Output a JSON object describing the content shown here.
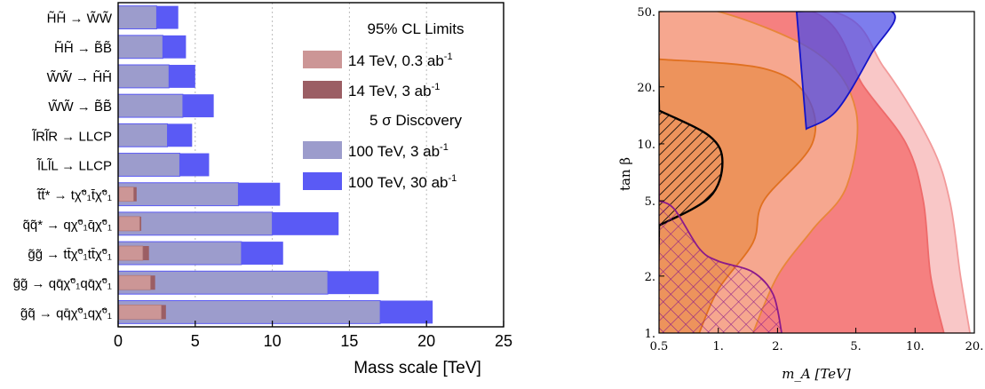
{
  "colors": {
    "lhc_low": "#cc9696",
    "lhc_high": "#9b5e64",
    "fcc_low": "#9c9ccc",
    "fcc_high": "#5a5af5",
    "bar_edge": "#5a5af5",
    "grid": "#bbbbbb",
    "hatch_black": "#000000",
    "hatch_purple": "#8b1a8b",
    "blue_fill": "#4b4be6",
    "orange_fill": "#e8863a",
    "light_orange_fill": "#f6c79a",
    "pink_fill": "#f47c7c",
    "light_pink_fill": "#f9c4c4",
    "purple_fill": "#6e5ab4"
  },
  "chart_data": [
    {
      "type": "bar",
      "orientation": "horizontal",
      "xlabel": "Mass scale [TeV]",
      "xlim": [
        0,
        25
      ],
      "xticks": [
        "0",
        "5",
        "10",
        "15",
        "20",
        "25"
      ],
      "grid": "vertical dotted at 5, 10, 15, 20",
      "legend_position": "top-right",
      "legend": {
        "group1_title": "95% CL Limits",
        "group2_title": "5 σ Discovery",
        "entries": [
          {
            "key": "lhc_low",
            "label": "14 TeV, 0.3 ab",
            "sup": "-1"
          },
          {
            "key": "lhc_high",
            "label": "14 TeV, 3 ab",
            "sup": "-1"
          },
          {
            "key": "fcc_low",
            "label": "100 TeV, 3 ab",
            "sup": "-1"
          },
          {
            "key": "fcc_high",
            "label": "100 TeV, 30 ab",
            "sup": "-1"
          }
        ]
      },
      "rows": [
        {
          "label": "H̃H̃ → W̃W̃",
          "lhc_low": null,
          "lhc_high": null,
          "fcc_low": 2.5,
          "fcc_high": 3.9
        },
        {
          "label": "H̃H̃ → B̃B̃",
          "lhc_low": null,
          "lhc_high": null,
          "fcc_low": 2.9,
          "fcc_high": 4.4
        },
        {
          "label": "W̃W̃ → H̃H̃",
          "lhc_low": null,
          "lhc_high": null,
          "fcc_low": 3.3,
          "fcc_high": 5.0
        },
        {
          "label": "W̃W̃ → B̃B̃",
          "lhc_low": null,
          "lhc_high": null,
          "fcc_low": 4.2,
          "fcc_high": 6.2
        },
        {
          "label": "l̃Rl̃R → LLCP",
          "lhc_low": null,
          "lhc_high": null,
          "fcc_low": 3.2,
          "fcc_high": 4.8
        },
        {
          "label": "l̃Ll̃L → LLCP",
          "lhc_low": null,
          "lhc_high": null,
          "fcc_low": 4.0,
          "fcc_high": 5.9
        },
        {
          "label": "t̃t̃* → tχ̃⁰₁t̄χ̃⁰₁",
          "lhc_low": 1.0,
          "lhc_high": 1.2,
          "fcc_low": 7.8,
          "fcc_high": 10.5
        },
        {
          "label": "q̃q̃* → qχ̃⁰₁q̄χ̃⁰₁",
          "lhc_low": 1.4,
          "lhc_high": 1.5,
          "fcc_low": 10.0,
          "fcc_high": 14.3
        },
        {
          "label": "g̃g̃ → tt̄χ̃⁰₁tt̄χ̃⁰₁",
          "lhc_low": 1.6,
          "lhc_high": 2.0,
          "fcc_low": 8.0,
          "fcc_high": 10.7
        },
        {
          "label": "g̃g̃ → qq̄χ̃⁰₁qq̄χ̃⁰₁",
          "lhc_low": 2.1,
          "lhc_high": 2.4,
          "fcc_low": 13.6,
          "fcc_high": 16.9
        },
        {
          "label": "g̃q̃ → qq̄χ̃⁰₁qχ̃⁰₁",
          "lhc_low": 2.8,
          "lhc_high": 3.1,
          "fcc_low": 17.0,
          "fcc_high": 20.4
        }
      ]
    },
    {
      "type": "area",
      "xlabel": "m_A [TeV]",
      "ylabel": "tan β",
      "xscale": "log",
      "yscale": "log",
      "xlim": [
        0.5,
        20
      ],
      "ylim": [
        1,
        50
      ],
      "xticks": [
        "0.5",
        "1.",
        "2.",
        "5.",
        "10.",
        "20."
      ],
      "yticks": [
        "1.",
        "2.",
        "5.",
        "10.",
        "20.",
        "50."
      ],
      "regions": [
        {
          "name": "light pink",
          "boundary": [
            [
              0.5,
              50
            ],
            [
              3.8,
              50
            ],
            [
              7,
              25
            ],
            [
              12,
              10
            ],
            [
              15,
              5
            ],
            [
              17,
              2
            ],
            [
              19,
              1
            ]
          ]
        },
        {
          "name": "pink",
          "boundary": [
            [
              0.5,
              50
            ],
            [
              3.0,
              50
            ],
            [
              5.5,
              20
            ],
            [
              9,
              10
            ],
            [
              11,
              5
            ],
            [
              12,
              2
            ],
            [
              14,
              1
            ]
          ]
        },
        {
          "name": "light orange",
          "boundary": [
            [
              0.5,
              50
            ],
            [
              1,
              50
            ],
            [
              3.2,
              30
            ],
            [
              5,
              15
            ],
            [
              4.5,
              6
            ],
            [
              3,
              3.5
            ],
            [
              2,
              2
            ],
            [
              1.5,
              1
            ]
          ]
        },
        {
          "name": "orange",
          "boundary": [
            [
              0.5,
              28
            ],
            [
              1.7,
              25
            ],
            [
              2.8,
              18
            ],
            [
              3,
              10
            ],
            [
              1.7,
              5
            ],
            [
              1.5,
              3
            ],
            [
              1,
              1.7
            ],
            [
              0.8,
              1
            ]
          ]
        },
        {
          "name": "blue",
          "boundary": [
            [
              2.5,
              50
            ],
            [
              7.6,
              50
            ],
            [
              6,
              30
            ],
            [
              4,
              15
            ],
            [
              2.8,
              12
            ]
          ]
        },
        {
          "name": "black hatched",
          "boundary": [
            [
              0.5,
              15
            ],
            [
              0.9,
              11
            ],
            [
              1.05,
              8
            ],
            [
              0.9,
              5.2
            ],
            [
              0.5,
              3.7
            ]
          ]
        },
        {
          "name": "purple hatched",
          "boundary": [
            [
              0.5,
              5
            ],
            [
              0.6,
              4.5
            ],
            [
              0.8,
              2.8
            ],
            [
              1,
              2.4
            ],
            [
              1.5,
              2.1
            ],
            [
              1.9,
              1.6
            ],
            [
              2.1,
              1
            ]
          ]
        }
      ]
    }
  ]
}
